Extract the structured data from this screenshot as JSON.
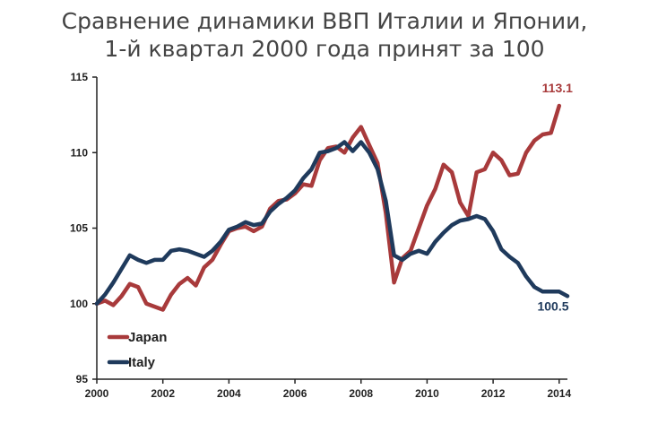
{
  "chart_data": {
    "type": "line",
    "title_lines": [
      "Сравнение динамики ВВП Италии и Японии,",
      "1-й квартал 2000 года принят за 100"
    ],
    "xlim": [
      2000,
      2014.25
    ],
    "ylim": [
      95,
      115
    ],
    "x_ticks": [
      2000,
      2002,
      2004,
      2006,
      2008,
      2010,
      2012,
      2014
    ],
    "y_ticks": [
      95,
      100,
      105,
      110,
      115
    ],
    "x_tick_labels": [
      "2000",
      "2002",
      "2004",
      "2006",
      "2008",
      "2010",
      "2012",
      "2014"
    ],
    "y_tick_labels": [
      "95",
      "100",
      "105",
      "110",
      "115"
    ],
    "grid": false,
    "legend_position": "bottom-left",
    "series": [
      {
        "name": "Japan",
        "color": "#a83a3b",
        "end_label": "113.1",
        "points": [
          [
            2000.0,
            100.0
          ],
          [
            2000.25,
            100.2
          ],
          [
            2000.5,
            99.9
          ],
          [
            2000.75,
            100.5
          ],
          [
            2001.0,
            101.3
          ],
          [
            2001.25,
            101.1
          ],
          [
            2001.5,
            100.0
          ],
          [
            2001.75,
            99.8
          ],
          [
            2002.0,
            99.6
          ],
          [
            2002.25,
            100.6
          ],
          [
            2002.5,
            101.3
          ],
          [
            2002.75,
            101.7
          ],
          [
            2003.0,
            101.2
          ],
          [
            2003.25,
            102.4
          ],
          [
            2003.5,
            102.9
          ],
          [
            2003.75,
            103.9
          ],
          [
            2004.0,
            104.8
          ],
          [
            2004.25,
            105.0
          ],
          [
            2004.5,
            105.1
          ],
          [
            2004.75,
            104.8
          ],
          [
            2005.0,
            105.1
          ],
          [
            2005.25,
            106.3
          ],
          [
            2005.5,
            106.8
          ],
          [
            2005.75,
            106.9
          ],
          [
            2006.0,
            107.3
          ],
          [
            2006.25,
            107.9
          ],
          [
            2006.5,
            107.8
          ],
          [
            2006.75,
            109.5
          ],
          [
            2007.0,
            110.3
          ],
          [
            2007.25,
            110.4
          ],
          [
            2007.5,
            110.0
          ],
          [
            2007.75,
            111.0
          ],
          [
            2008.0,
            111.7
          ],
          [
            2008.25,
            110.5
          ],
          [
            2008.5,
            109.3
          ],
          [
            2008.75,
            106.0
          ],
          [
            2009.0,
            101.4
          ],
          [
            2009.25,
            103.0
          ],
          [
            2009.5,
            103.5
          ],
          [
            2009.75,
            105.0
          ],
          [
            2010.0,
            106.5
          ],
          [
            2010.25,
            107.6
          ],
          [
            2010.5,
            109.2
          ],
          [
            2010.75,
            108.7
          ],
          [
            2011.0,
            106.7
          ],
          [
            2011.25,
            105.8
          ],
          [
            2011.5,
            108.7
          ],
          [
            2011.75,
            108.9
          ],
          [
            2012.0,
            110.0
          ],
          [
            2012.25,
            109.5
          ],
          [
            2012.5,
            108.5
          ],
          [
            2012.75,
            108.6
          ],
          [
            2013.0,
            110.0
          ],
          [
            2013.25,
            110.8
          ],
          [
            2013.5,
            111.2
          ],
          [
            2013.75,
            111.3
          ],
          [
            2014.0,
            113.1
          ]
        ]
      },
      {
        "name": "Italy",
        "color": "#1f3a5c",
        "end_label": "100.5",
        "points": [
          [
            2000.0,
            100.0
          ],
          [
            2000.25,
            100.6
          ],
          [
            2000.5,
            101.4
          ],
          [
            2000.75,
            102.3
          ],
          [
            2001.0,
            103.2
          ],
          [
            2001.25,
            102.9
          ],
          [
            2001.5,
            102.7
          ],
          [
            2001.75,
            102.9
          ],
          [
            2002.0,
            102.9
          ],
          [
            2002.25,
            103.5
          ],
          [
            2002.5,
            103.6
          ],
          [
            2002.75,
            103.5
          ],
          [
            2003.0,
            103.3
          ],
          [
            2003.25,
            103.1
          ],
          [
            2003.5,
            103.5
          ],
          [
            2003.75,
            104.1
          ],
          [
            2004.0,
            104.9
          ],
          [
            2004.25,
            105.1
          ],
          [
            2004.5,
            105.4
          ],
          [
            2004.75,
            105.2
          ],
          [
            2005.0,
            105.3
          ],
          [
            2005.25,
            106.1
          ],
          [
            2005.5,
            106.6
          ],
          [
            2005.75,
            107.0
          ],
          [
            2006.0,
            107.5
          ],
          [
            2006.25,
            108.3
          ],
          [
            2006.5,
            108.9
          ],
          [
            2006.75,
            110.0
          ],
          [
            2007.0,
            110.1
          ],
          [
            2007.25,
            110.3
          ],
          [
            2007.5,
            110.7
          ],
          [
            2007.75,
            110.1
          ],
          [
            2008.0,
            110.7
          ],
          [
            2008.25,
            110.0
          ],
          [
            2008.5,
            108.9
          ],
          [
            2008.75,
            106.8
          ],
          [
            2009.0,
            103.2
          ],
          [
            2009.25,
            102.9
          ],
          [
            2009.5,
            103.3
          ],
          [
            2009.75,
            103.5
          ],
          [
            2010.0,
            103.3
          ],
          [
            2010.25,
            104.1
          ],
          [
            2010.5,
            104.7
          ],
          [
            2010.75,
            105.2
          ],
          [
            2011.0,
            105.5
          ],
          [
            2011.25,
            105.6
          ],
          [
            2011.5,
            105.8
          ],
          [
            2011.75,
            105.6
          ],
          [
            2012.0,
            104.8
          ],
          [
            2012.25,
            103.6
          ],
          [
            2012.5,
            103.1
          ],
          [
            2012.75,
            102.7
          ],
          [
            2013.0,
            101.8
          ],
          [
            2013.25,
            101.1
          ],
          [
            2013.5,
            100.8
          ],
          [
            2013.75,
            100.8
          ],
          [
            2014.0,
            100.8
          ],
          [
            2014.25,
            100.5
          ]
        ]
      }
    ]
  }
}
